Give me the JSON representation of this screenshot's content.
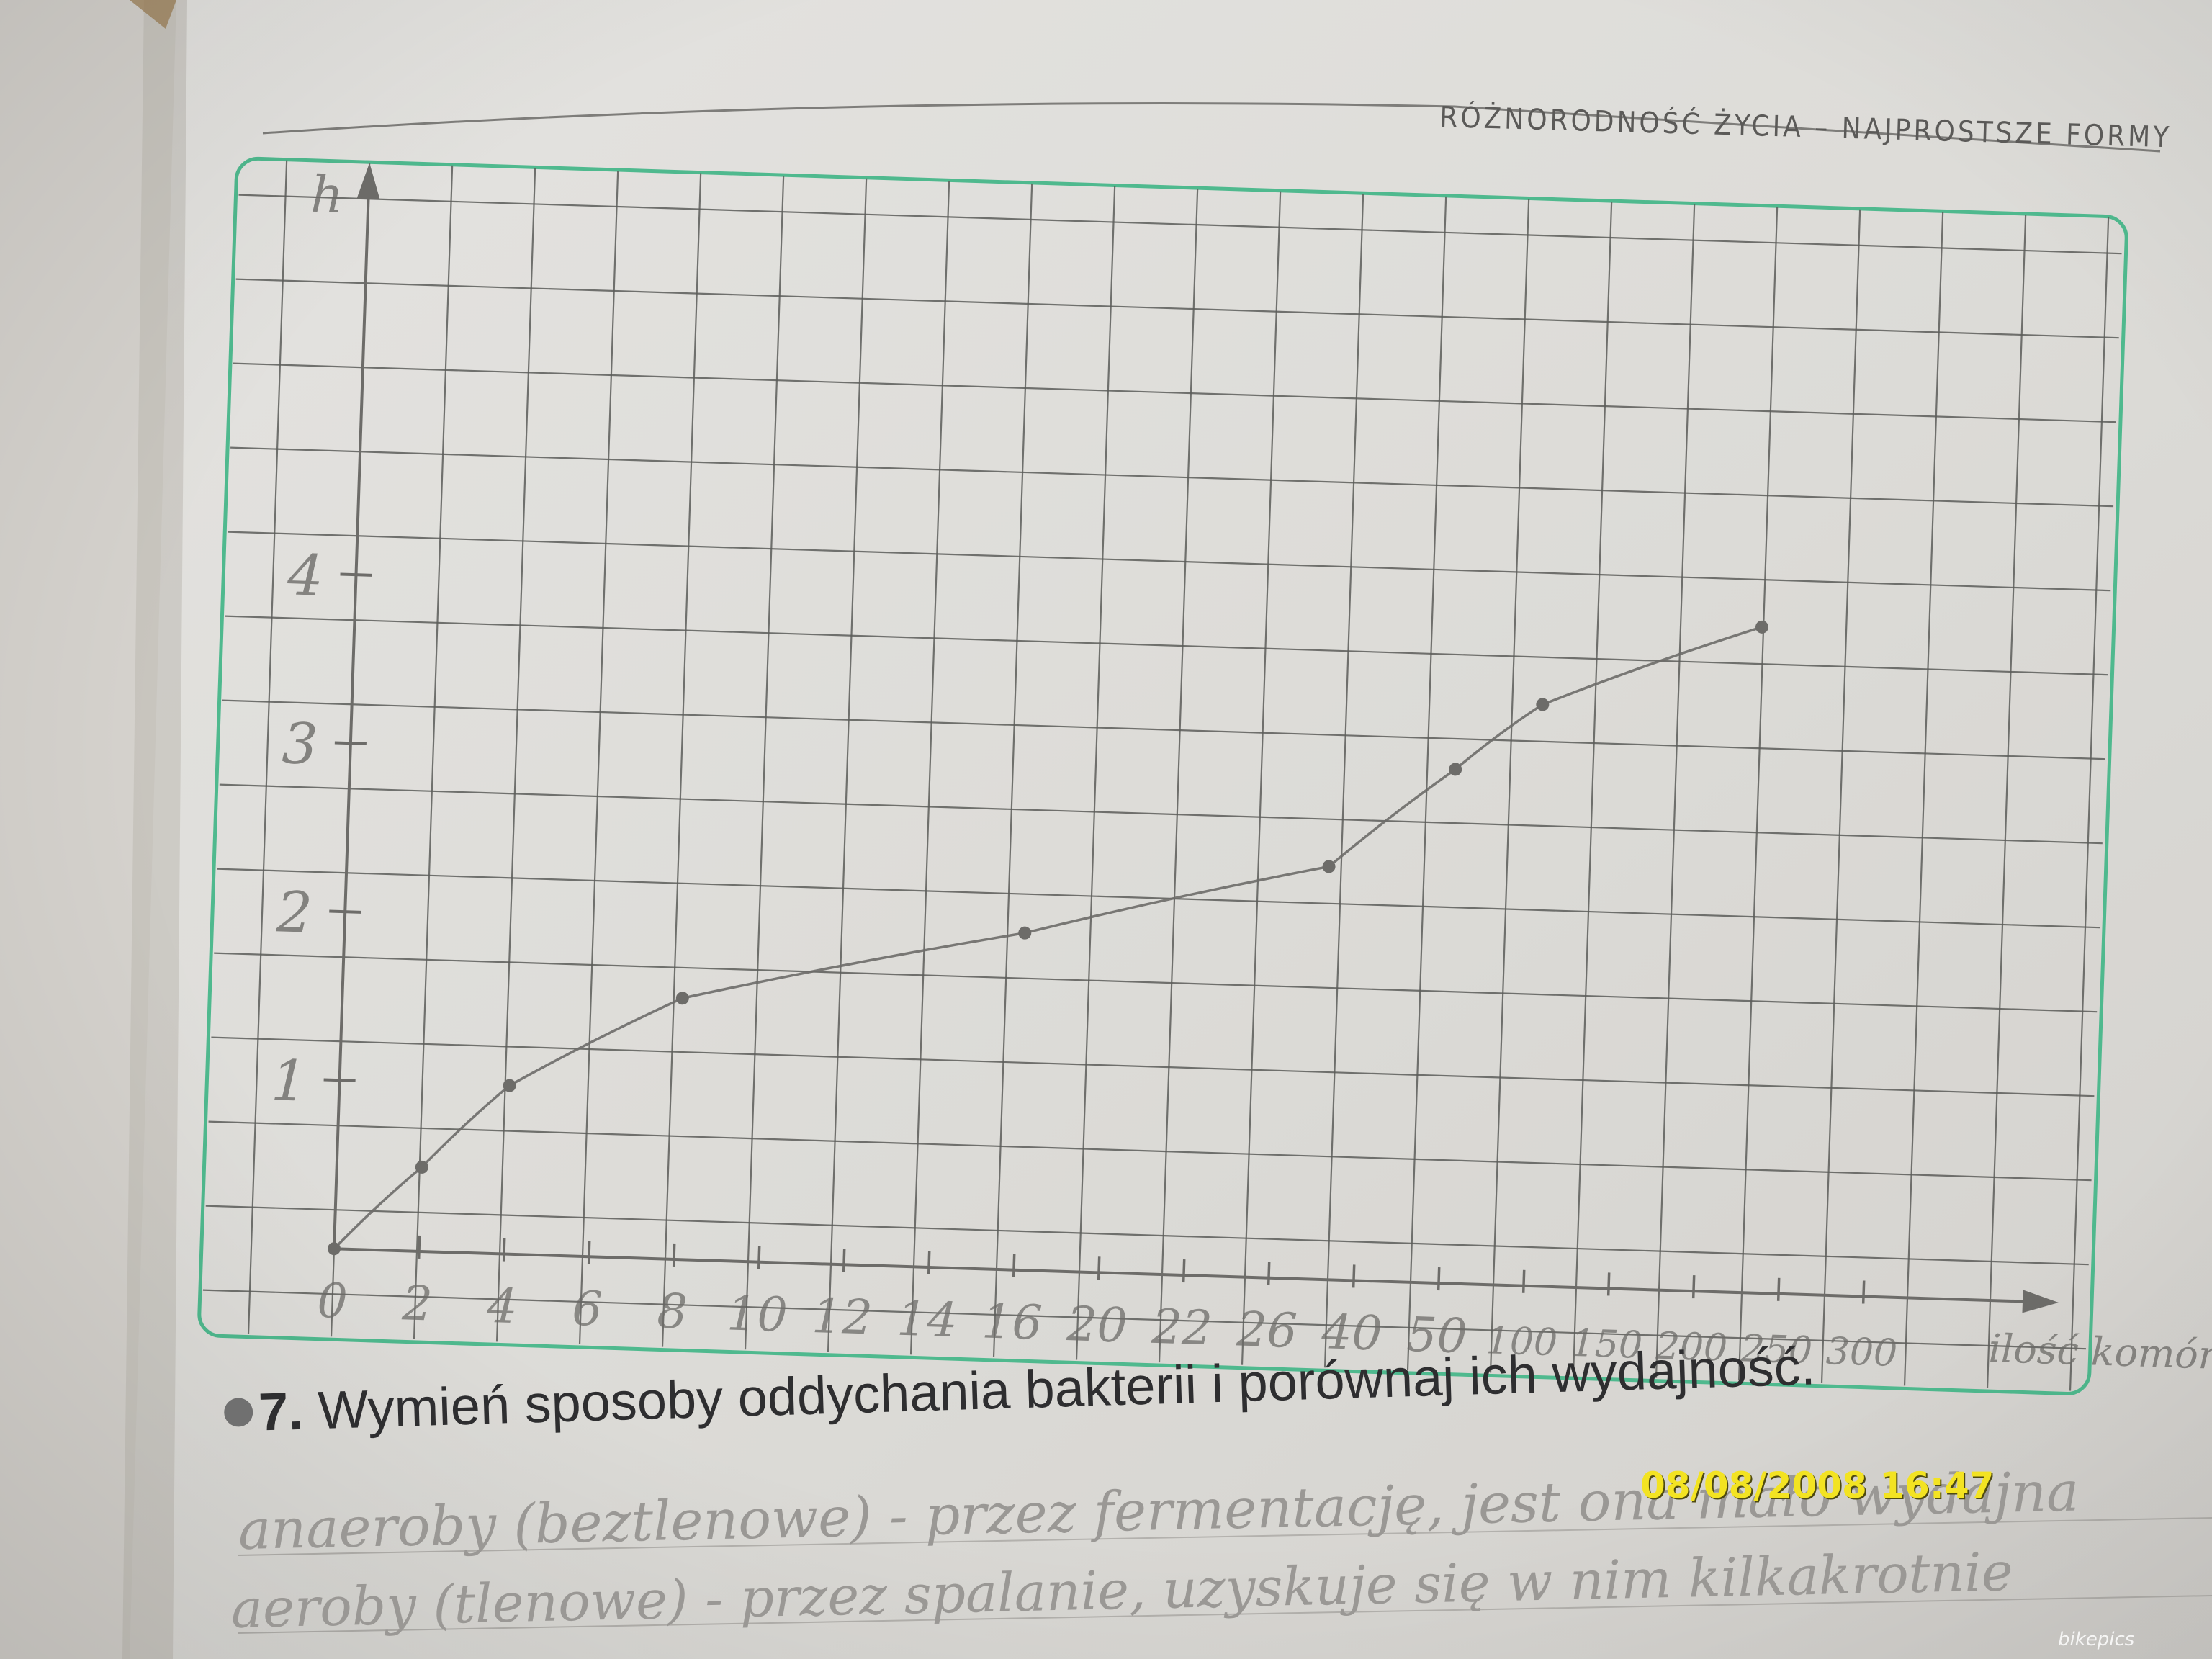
{
  "page": {
    "header": "RÓŻNORODNOŚĆ ŻYCIA – NAJPROSTSZE FORMY",
    "question_number": "7.",
    "question_text": "Wymień sposoby oddychania bakterii i porównaj ich wydajność.",
    "handwritten_answer_line1": "anaeroby (beztlenowe) - przez fermentację, jest ona mało wydajna",
    "handwritten_answer_line2": "aeroby (tlenowe) - przez spalanie, uzyskuje się w nim kilkakrotnie",
    "timestamp": "08/08/2008 16:47",
    "watermark": "bikepics"
  },
  "chart_data": {
    "type": "line",
    "title": "",
    "xlabel": "ilość komórek",
    "ylabel": "h",
    "categories": [
      "0",
      "2",
      "4",
      "6",
      "8",
      "10",
      "12",
      "14",
      "16",
      "20",
      "22",
      "26",
      "40",
      "50",
      "100",
      "150",
      "200",
      "250",
      "300"
    ],
    "yticks": [
      "1",
      "2",
      "3",
      "4"
    ],
    "ylim": [
      0,
      6
    ],
    "grid": true,
    "series": [
      {
        "x": [
          "0",
          "2",
          "4",
          "8",
          "16",
          "26+",
          "50",
          "100",
          "200+"
        ],
        "values": [
          0,
          0.5,
          1,
          1.55,
          2,
          2.45,
          3.05,
          3.45,
          3.95
        ]
      }
    ],
    "colors": {
      "frame": "#4fb98e",
      "grid": "#5c5d5a",
      "pencil": "#6d6c69",
      "paper": "#e7e6e3"
    }
  }
}
